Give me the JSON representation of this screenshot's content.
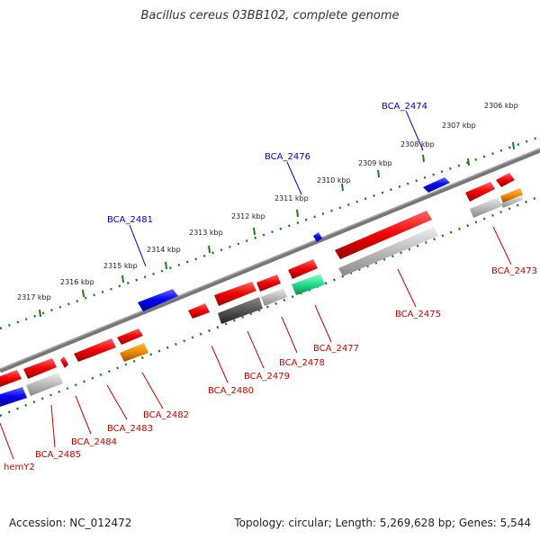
{
  "title": "Bacillus cereus 03BB102, complete genome",
  "accession": "Accession: NC_012472",
  "topology": "Topology: circular; Length: 5,269,628 bp; Genes: 5,544",
  "colors": {
    "backbone": "#777777",
    "ticks": "#1e7a1e",
    "red_gene": "#ee0000",
    "blue_gene": "#0000ee",
    "orange_gene": "#ee8800",
    "teal_gene": "#22dd88",
    "gray_gene": "#aaaaaa",
    "dark_gene": "#555555",
    "label_red": "#cc0000",
    "label_blue": "#0000cc"
  },
  "kbp_ticks": [
    "2306 kbp",
    "2307 kbp",
    "2308 kbp",
    "2309 kbp",
    "2310 kbp",
    "2311 kbp",
    "2312 kbp",
    "2313 kbp",
    "2314 kbp",
    "2315 kbp",
    "2316 kbp",
    "2317 kbp"
  ],
  "upper_labels": [
    "BCA_2474",
    "BCA_2476",
    "BCA_2481"
  ],
  "lower_labels": [
    "BCA_2473",
    "BCA_2475",
    "BCA_2477",
    "BCA_2478",
    "BCA_2479",
    "BCA_2480",
    "BCA_2482",
    "BCA_2483",
    "BCA_2484",
    "BCA_2485",
    "hemY2"
  ]
}
